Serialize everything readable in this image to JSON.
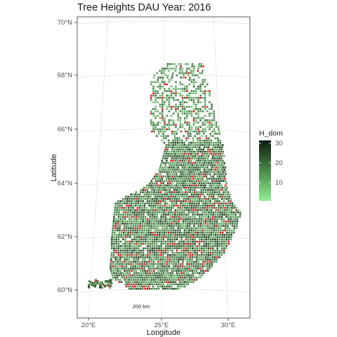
{
  "title": "Tree Heights DAU Year: 2016",
  "x_axis": {
    "label": "Longitude",
    "ticks": [
      "20°E",
      "25°E",
      "30°E"
    ]
  },
  "y_axis": {
    "label": "Latitude",
    "ticks": [
      "60°N",
      "62°N",
      "64°N",
      "66°N",
      "68°N",
      "70°N"
    ]
  },
  "legend": {
    "title": "H_dom",
    "ticks": [
      "10",
      "20",
      "30"
    ],
    "range": [
      3,
      31
    ],
    "colors": [
      "#90ee90",
      "#1a3a1a"
    ]
  },
  "scale_bar": {
    "label": "200 km"
  },
  "colors": {
    "low_height": "#90ee90",
    "high_height": "#0d1a0d",
    "highlight": "#e31a1c",
    "panel_border": "#333333",
    "grid": "#e5e5e5"
  }
}
